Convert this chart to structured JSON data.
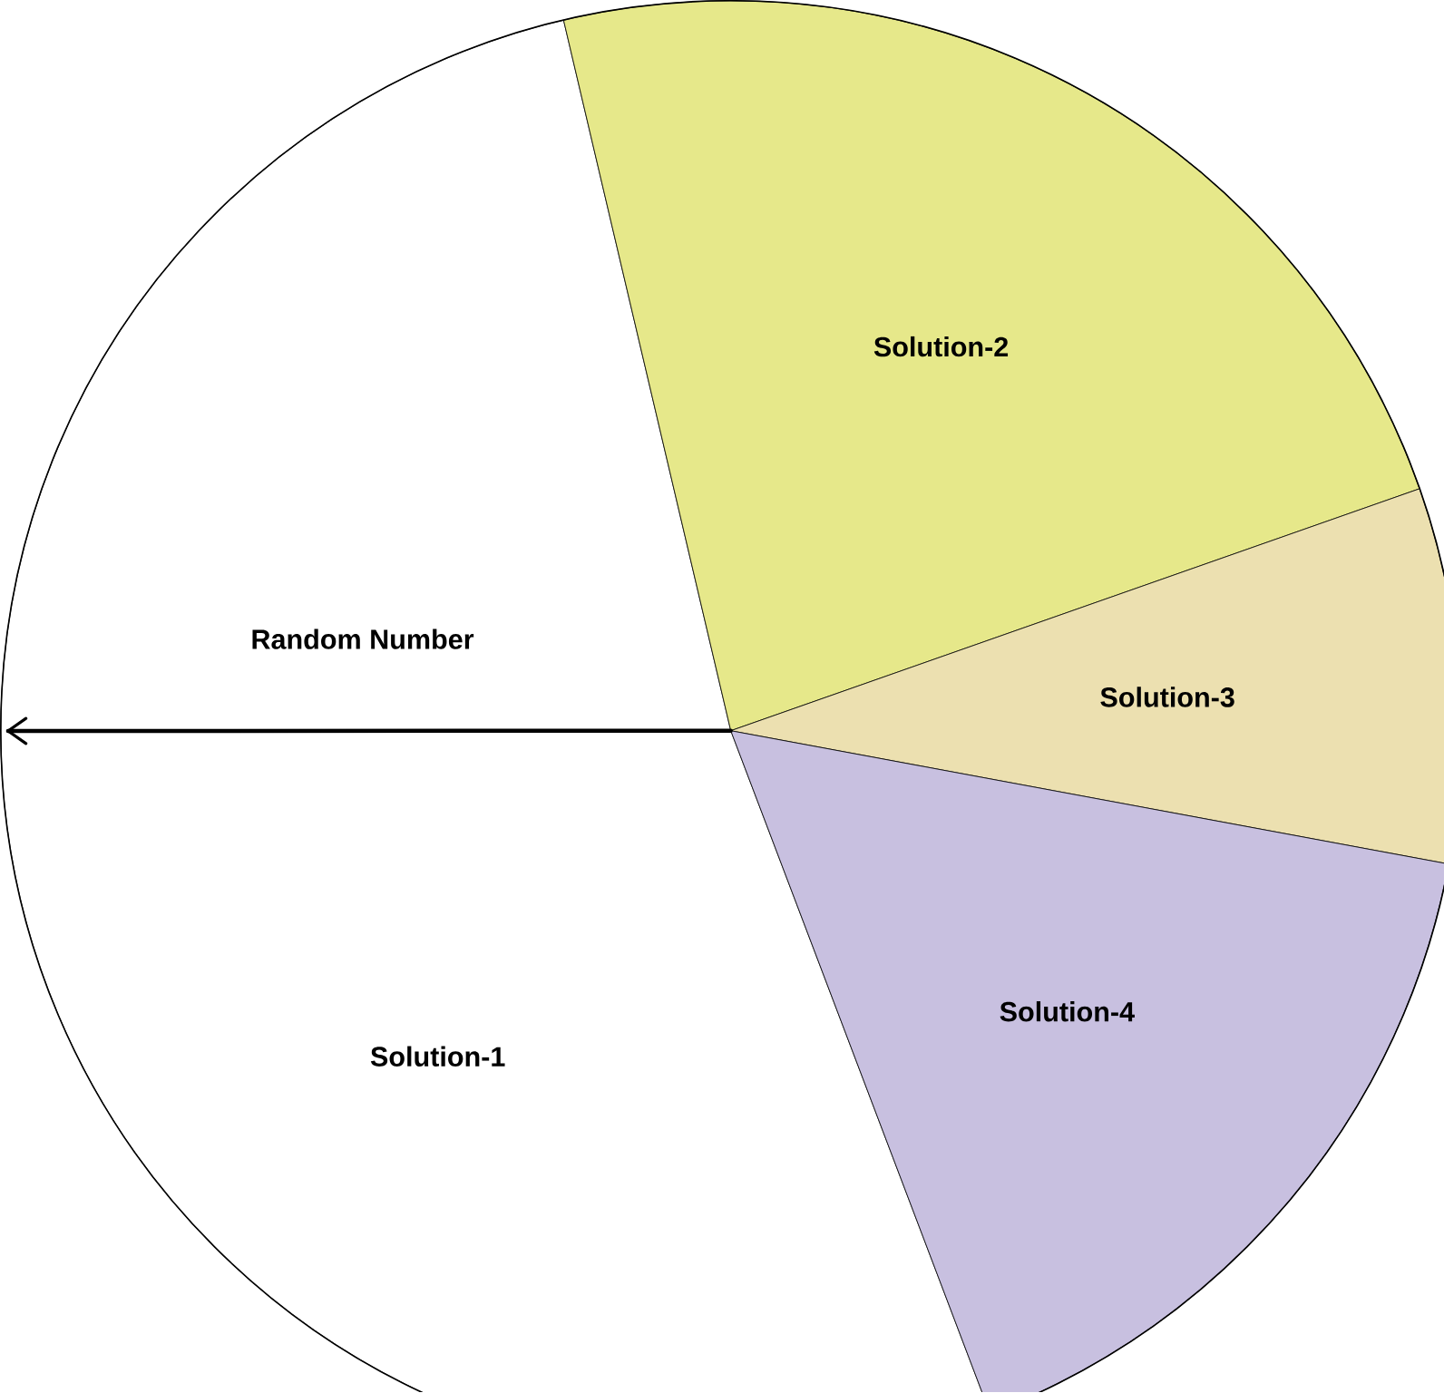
{
  "chart_data": {
    "type": "pie",
    "categories": [
      "Solution-1",
      "Solution-2",
      "Solution-3",
      "Solution-4"
    ],
    "values": [
      52.1,
      23.3,
      8.3,
      16.3
    ],
    "colors": [
      "#ffffff",
      "#e6e88a",
      "#ece0b0",
      "#c8c0e0"
    ],
    "needle": "Solution-1",
    "annotations": [
      "Random Number"
    ]
  }
}
